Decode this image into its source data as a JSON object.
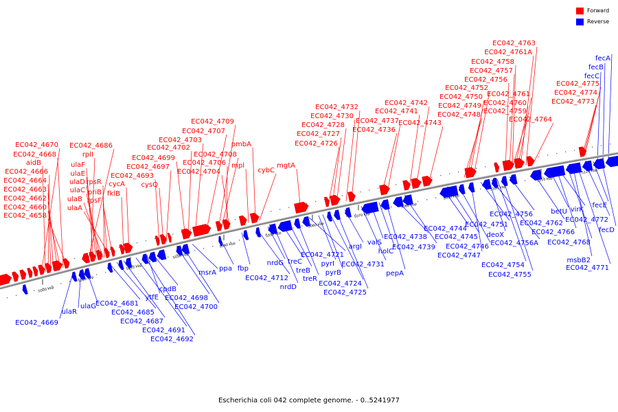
{
  "caption": "Escherichia coli 042 complete genome. - 0..5241977",
  "legend": [
    {
      "label": "Forward",
      "color": "#ff0000"
    },
    {
      "label": "Reverse",
      "color": "#0000ff"
    }
  ],
  "colors": {
    "forward": "#ff0000",
    "reverse": "#0000ff",
    "backbone": "#909090"
  },
  "ticks": [
    "5000 kbp",
    "5010 kbp",
    "5020 kbp",
    "5030 kbp",
    "5040 kbp",
    "5050 kbp",
    "5060 kbp",
    "5070 kbp",
    "5080 kbp",
    "5090 kbp",
    "5100 kbp",
    "5110 kbp",
    "5120 kbp"
  ],
  "forward_labels": [
    "EC042_4670",
    "EC042_4668",
    "aidB",
    "EC042_4666",
    "EC042_4664",
    "EC042_4663",
    "EC042_4662",
    "EC042_4660",
    "EC042_4658",
    "EC042_4686",
    "rplI",
    "ulaF",
    "ulaE",
    "ulaD",
    "ulaC",
    "ulaB",
    "ulaA",
    "rpsR",
    "priB",
    "rpsF",
    "fklB",
    "cycA",
    "EC042_4693",
    "cysQ",
    "EC042_4697",
    "EC042_4699",
    "EC042_4702",
    "EC042_4703",
    "EC042_4707",
    "EC042_4709",
    "EC042_4708",
    "EC042_4706",
    "EC042_4704",
    "pmbA",
    "mpl",
    "cybC",
    "mgtA",
    "EC042_4732",
    "EC042_4730",
    "EC042_4728",
    "EC042_4727",
    "EC042_4726",
    "EC042_4737",
    "EC042_4736",
    "EC042_4742",
    "EC042_4741",
    "EC042_4743",
    "EC042_4763",
    "EC042_4761A",
    "EC042_4758",
    "EC042_4757",
    "EC042_4756",
    "EC042_4752",
    "EC042_4750",
    "EC042_4749",
    "EC042_4748",
    "EC042_4761",
    "EC042_4760",
    "EC042_4759",
    "EC042_4764",
    "EC042_4775",
    "EC042_4774",
    "EC042_4773"
  ],
  "reverse_labels": [
    "EC042_4669",
    "ulaR",
    "ulaG",
    "EC042_4681",
    "EC042_4685",
    "EC042_4687",
    "EC042_4691",
    "EC042_4692",
    "ytfE",
    "cpdB",
    "EC042_4698",
    "EC042_4700",
    "msrA",
    "ppa",
    "fbp",
    "EC042_4712",
    "nrdG",
    "nrdD",
    "treC",
    "treB",
    "treR",
    "EC042_4721",
    "pyrI",
    "pyrB",
    "EC042_4724",
    "EC042_4725",
    "argI",
    "valS",
    "holC",
    "EC042_4731",
    "pepA",
    "EC042_4738",
    "EC042_4739",
    "EC042_4744",
    "EC042_4745",
    "EC042_4746",
    "EC042_4747",
    "EC042_4751",
    "deoX",
    "EC042_4756A",
    "EC042_4754",
    "EC042_4755",
    "EC042_4756",
    "EC042_4762",
    "betU",
    "virK",
    "EC042_4766",
    "EC042_4768",
    "msbB2",
    "EC042_4771",
    "EC042_4772",
    "fecE",
    "fecD",
    "fecA",
    "fecB",
    "fecC"
  ]
}
